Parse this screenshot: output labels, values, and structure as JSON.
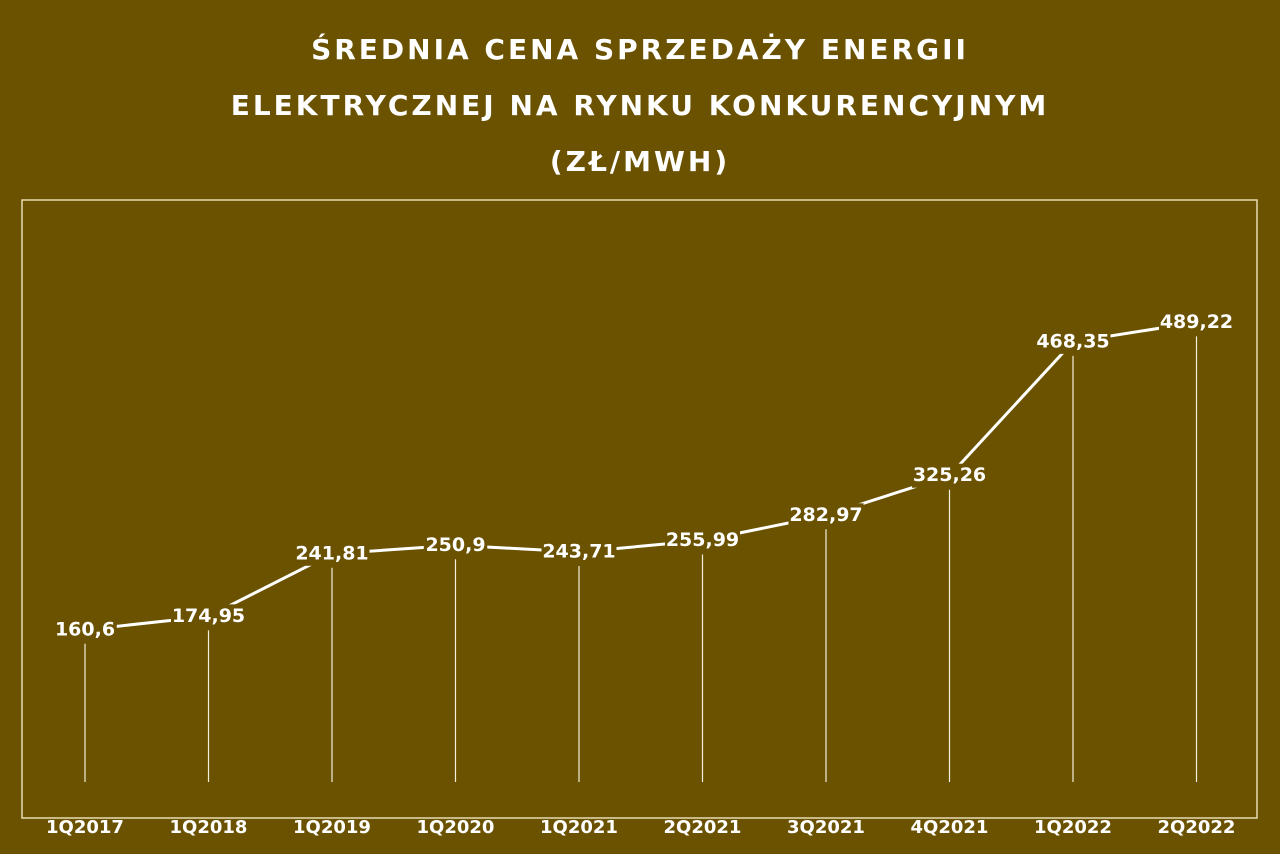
{
  "chart_data": {
    "type": "line",
    "title": "ŚREDNIA CENA SPRZEDAŻY ENERGII ELEKTRYCZNEJ NA RYNKU KONKURENCYJNYM (ZŁ/MWH)",
    "categories": [
      "1Q2017",
      "1Q2018",
      "1Q2019",
      "1Q2020",
      "1Q2021",
      "2Q2021",
      "3Q2021",
      "4Q2021",
      "1Q2022",
      "2Q2022"
    ],
    "values": [
      160.6,
      174.95,
      241.81,
      250.9,
      243.71,
      255.99,
      282.97,
      325.26,
      468.35,
      489.22
    ],
    "value_labels": [
      "160,6",
      "174,95",
      "241,81",
      "250,9",
      "243,71",
      "255,99",
      "282,97",
      "325,26",
      "468,35",
      "489,22"
    ],
    "color": "#ffffff",
    "ylim": [
      0,
      620
    ]
  }
}
